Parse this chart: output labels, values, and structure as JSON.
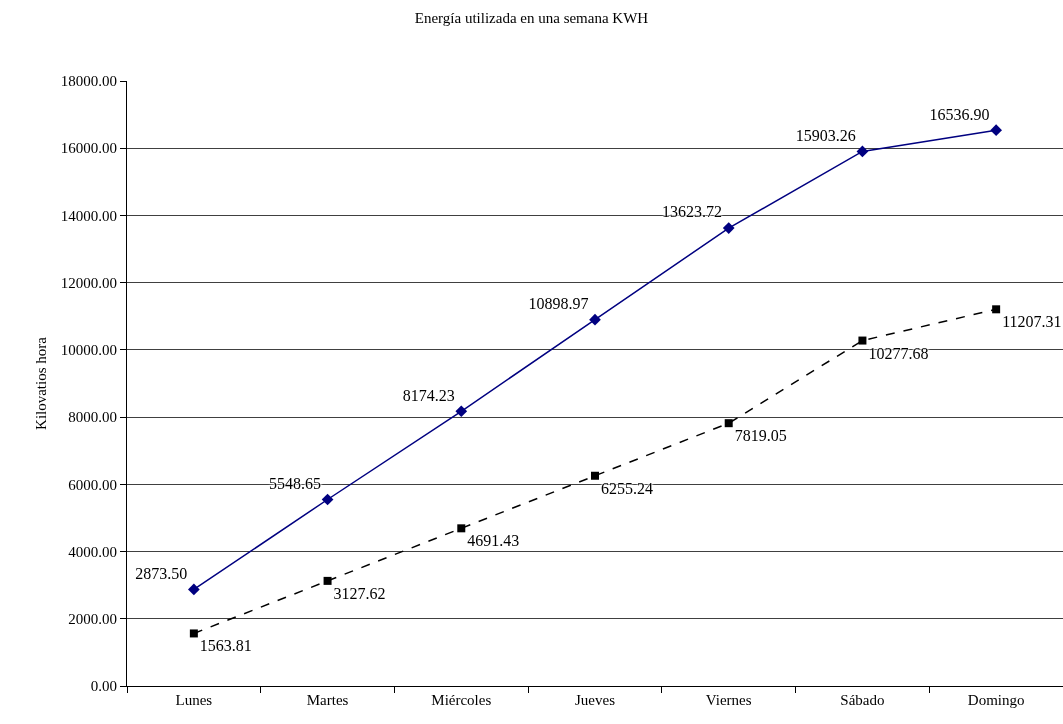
{
  "chart_data": {
    "type": "line",
    "title": "Energía utilizada en una semana KWH",
    "ylabel": "Kilovatios hora",
    "categories": [
      "Lunes",
      "Martes",
      "Miércoles",
      "Jueves",
      "Viernes",
      "Sábado",
      "Domingo"
    ],
    "series": [
      {
        "color": "#000080",
        "marker": "diamond",
        "line_style": "solid",
        "values": [
          2873.5,
          5548.65,
          8174.23,
          10898.97,
          13623.72,
          15903.26,
          16536.9
        ],
        "value_labels": [
          "2873.50",
          "5548.65",
          "8174.23",
          "10898.97",
          "13623.72",
          "15903.26",
          "16536.90"
        ]
      },
      {
        "color": "#000000",
        "marker": "square",
        "line_style": "dashed",
        "values": [
          1563.81,
          3127.62,
          4691.43,
          6255.24,
          7819.05,
          10277.68,
          11207.31
        ],
        "value_labels": [
          "1563.81",
          "3127.62",
          "4691.43",
          "6255.24",
          "7819.05",
          "10277.68",
          "11207.31"
        ]
      }
    ],
    "ylim": [
      0,
      18000
    ],
    "yticks": [
      {
        "value": 0,
        "label": "0.00"
      },
      {
        "value": 2000,
        "label": "2000.00"
      },
      {
        "value": 4000,
        "label": "4000.00"
      },
      {
        "value": 6000,
        "label": "6000.00"
      },
      {
        "value": 8000,
        "label": "8000.00"
      },
      {
        "value": 10000,
        "label": "10000.00"
      },
      {
        "value": 12000,
        "label": "12000.00"
      },
      {
        "value": 14000,
        "label": "14000.00"
      },
      {
        "value": 16000,
        "label": "16000.00"
      },
      {
        "value": 18000,
        "label": "18000.00"
      }
    ],
    "grid": "y",
    "legend": false
  }
}
